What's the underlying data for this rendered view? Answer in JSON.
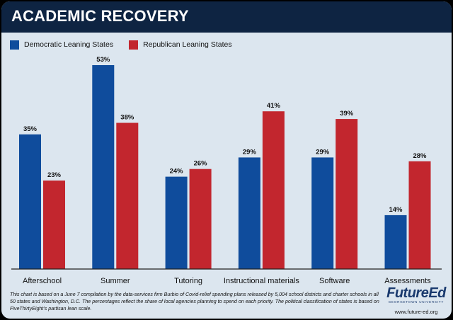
{
  "title": "ACADEMIC RECOVERY",
  "colors": {
    "header_bg": "#0e2442",
    "dem": "#0f4c9c",
    "rep": "#c2262e",
    "card_bg": "#dce6ef"
  },
  "footnote": "This chart is based on a June 7 compilation by the data-services firm Burbio of Covid-relief spending plans released by 5,004 school districts and charter schools in all 50 states and Washington, D.C. The percentages reflect the share of local agencies planning to spend on each priority. The political classification of states is based on FiveThirtyEight’s partisan lean scale.",
  "logo": {
    "name": "FutureEd",
    "sub": "GEORGETOWN UNIVERSITY",
    "url": "www.future-ed.org"
  },
  "chart_data": {
    "type": "bar",
    "categories": [
      "Afterschool",
      "Summer",
      "Tutoring",
      "Instructional materials",
      "Software",
      "Assessments"
    ],
    "series": [
      {
        "name": "Democratic Leaning States",
        "color": "#0f4c9c",
        "values": [
          35,
          53,
          24,
          29,
          29,
          14
        ]
      },
      {
        "name": "Republican Leaning States",
        "color": "#c2262e",
        "values": [
          23,
          38,
          26,
          41,
          39,
          28
        ]
      }
    ],
    "value_suffix": "%",
    "ylim": [
      0,
      53
    ],
    "legend_position": "top-left",
    "grid": false
  }
}
